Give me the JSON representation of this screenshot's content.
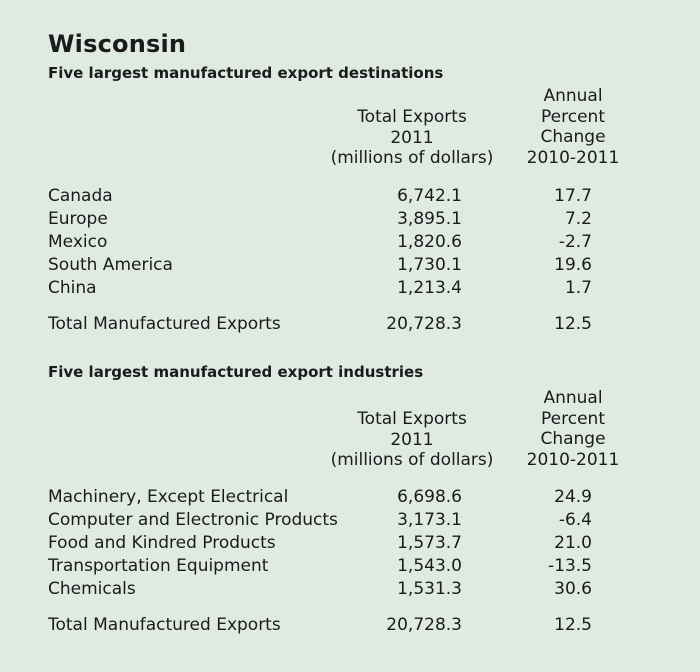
{
  "title": "Wisconsin",
  "sections": [
    {
      "subtitle": "Five largest manufactured export destinations",
      "col1": [
        "Total Exports",
        "2011",
        "(millions of dollars)"
      ],
      "col2": [
        "Annual",
        "Percent",
        "Change",
        "2010-2011"
      ],
      "rows": [
        {
          "label": "Canada",
          "value": "6,742.1",
          "change": "17.7"
        },
        {
          "label": "Europe",
          "value": "3,895.1",
          "change": "7.2"
        },
        {
          "label": "Mexico",
          "value": "1,820.6",
          "change": "-2.7"
        },
        {
          "label": "South America",
          "value": "1,730.1",
          "change": "19.6"
        },
        {
          "label": "China",
          "value": "1,213.4",
          "change": "1.7"
        }
      ],
      "total": {
        "label": "Total Manufactured Exports",
        "value": "20,728.3",
        "change": "12.5"
      }
    },
    {
      "subtitle": "Five largest manufactured export industries",
      "col1": [
        "Total Exports",
        "2011",
        "(millions of dollars)"
      ],
      "col2": [
        "Annual",
        "Percent",
        "Change",
        "2010-2011"
      ],
      "rows": [
        {
          "label": "Machinery, Except Electrical",
          "value": "6,698.6",
          "change": "24.9"
        },
        {
          "label": "Computer and Electronic Products",
          "value": "3,173.1",
          "change": "-6.4"
        },
        {
          "label": "Food and Kindred Products",
          "value": "1,573.7",
          "change": "21.0"
        },
        {
          "label": "Transportation Equipment",
          "value": "1,543.0",
          "change": "-13.5"
        },
        {
          "label": "Chemicals",
          "value": "1,531.3",
          "change": "30.6"
        }
      ],
      "total": {
        "label": "Total Manufactured Exports",
        "value": "20,728.3",
        "change": "12.5"
      }
    }
  ]
}
